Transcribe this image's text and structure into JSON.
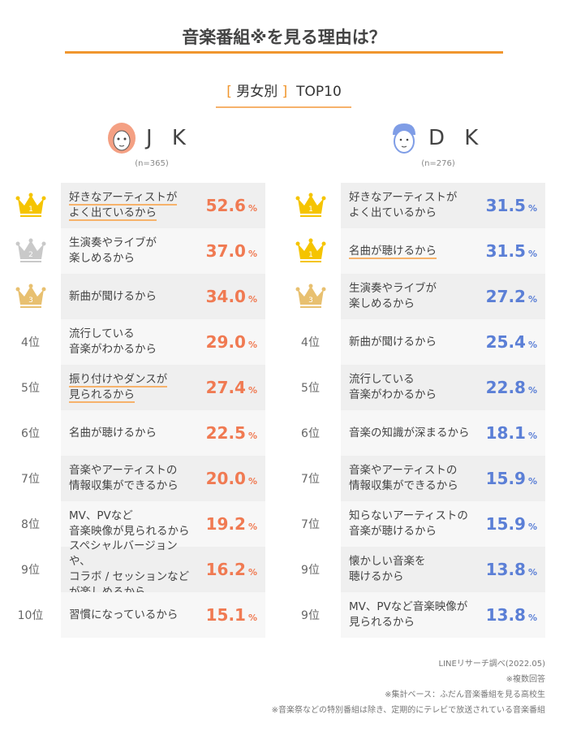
{
  "title": "音楽番組※を見る理由は？",
  "subtitle": {
    "bracket": "男女別",
    "rest": "TOP10"
  },
  "colors": {
    "accent": "#f0962e",
    "jk": "#f07a52",
    "dk": "#5b7fd6",
    "gold": "#f5c400",
    "silver": "#c9c9c9",
    "bronze": "#e8c070"
  },
  "chart_data": {
    "type": "table",
    "title": "音楽番組※を見る理由は？",
    "unit": "%",
    "groups": [
      {
        "name": "J K",
        "icon": "girl-face-icon",
        "n": "(n=365)",
        "rows": [
          {
            "rank": "1",
            "label": "好きなアーティストが\nよく出ているから",
            "value": "52.6",
            "highlight": true
          },
          {
            "rank": "2",
            "label": "生演奏やライブが\n楽しめるから",
            "value": "37.0"
          },
          {
            "rank": "3",
            "label": "新曲が聞けるから",
            "value": "34.0"
          },
          {
            "rank": "4位",
            "label": "流行している\n音楽がわかるから",
            "value": "29.0"
          },
          {
            "rank": "5位",
            "label": "振り付けやダンスが\n見られるから",
            "value": "27.4",
            "highlight": true
          },
          {
            "rank": "6位",
            "label": "名曲が聴けるから",
            "value": "22.5"
          },
          {
            "rank": "7位",
            "label": "音楽やアーティストの\n情報収集ができるから",
            "value": "20.0"
          },
          {
            "rank": "8位",
            "label": "MV、PVなど\n音楽映像が見られるから",
            "value": "19.2"
          },
          {
            "rank": "9位",
            "label": "スペシャルバージョンや、\nコラボ / セッションなど\nが楽しめるから",
            "value": "16.2"
          },
          {
            "rank": "10位",
            "label": "習慣になっているから",
            "value": "15.1"
          }
        ]
      },
      {
        "name": "D K",
        "icon": "boy-face-icon",
        "n": "(n=276)",
        "rows": [
          {
            "rank": "1",
            "label": "好きなアーティストが\nよく出ているから",
            "value": "31.5"
          },
          {
            "rank": "1",
            "label": "名曲が聴けるから",
            "value": "31.5",
            "highlight": true
          },
          {
            "rank": "3",
            "label": "生演奏やライブが\n楽しめるから",
            "value": "27.2"
          },
          {
            "rank": "4位",
            "label": "新曲が聞けるから",
            "value": "25.4"
          },
          {
            "rank": "5位",
            "label": "流行している\n音楽がわかるから",
            "value": "22.8"
          },
          {
            "rank": "6位",
            "label": "音楽の知識が深まるから",
            "value": "18.1"
          },
          {
            "rank": "7位",
            "label": "音楽やアーティストの\n情報収集ができるから",
            "value": "15.9"
          },
          {
            "rank": "7位",
            "label": "知らないアーティストの\n音楽が聴けるから",
            "value": "15.9"
          },
          {
            "rank": "9位",
            "label": "懐かしい音楽を\n聴けるから",
            "value": "13.8"
          },
          {
            "rank": "9位",
            "label": "MV、PVなど音楽映像が\n見られるから",
            "value": "13.8"
          }
        ]
      }
    ]
  },
  "notes": [
    "LINEリサーチ調べ(2022.05)",
    "※複数回答",
    "※集計ベース：ふだん音楽番組を見る高校生",
    "※音楽祭などの特別番組は除き、定期的にテレビで放送されている音楽番組"
  ]
}
